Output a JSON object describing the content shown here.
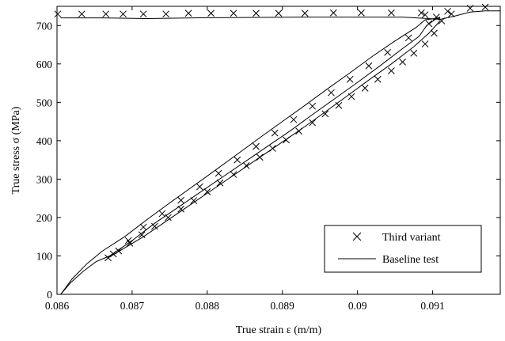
{
  "chart_data": {
    "type": "line",
    "title": "",
    "xlabel": "True strain ε (m/m)",
    "ylabel": "True stress σ (MPa)",
    "xlim": [
      0.086,
      0.0919
    ],
    "ylim": [
      0,
      750
    ],
    "grid": false,
    "legend": {
      "placement": "bottom-right",
      "entries": [
        "Third variant",
        "Baseline test"
      ]
    },
    "xticks": [
      {
        "value": 0.086,
        "label": "0.086"
      },
      {
        "value": 0.087,
        "label": "0.087"
      },
      {
        "value": 0.088,
        "label": "0.088"
      },
      {
        "value": 0.089,
        "label": "0.089"
      },
      {
        "value": 0.09,
        "label": "0.09"
      },
      {
        "value": 0.091,
        "label": "0.091"
      }
    ],
    "yticks": [
      {
        "value": 0,
        "label": "0"
      },
      {
        "value": 100,
        "label": "100"
      },
      {
        "value": 200,
        "label": "200"
      },
      {
        "value": 300,
        "label": "300"
      },
      {
        "value": 400,
        "label": "400"
      },
      {
        "value": 500,
        "label": "500"
      },
      {
        "value": 600,
        "label": "600"
      },
      {
        "value": 700,
        "label": "700"
      }
    ],
    "series": [
      {
        "name": "Third variant",
        "style": "cross-markers",
        "color": "#000000",
        "points": [
          [
            0.08601,
            730
          ],
          [
            0.08633,
            730
          ],
          [
            0.08665,
            730
          ],
          [
            0.08688,
            730
          ],
          [
            0.08715,
            730
          ],
          [
            0.08745,
            730
          ],
          [
            0.08775,
            732
          ],
          [
            0.08805,
            732
          ],
          [
            0.08835,
            732
          ],
          [
            0.08865,
            732
          ],
          [
            0.08895,
            732
          ],
          [
            0.0893,
            732
          ],
          [
            0.08968,
            733
          ],
          [
            0.09005,
            733
          ],
          [
            0.09045,
            733
          ],
          [
            0.09085,
            733
          ],
          [
            0.0912,
            737
          ],
          [
            0.0915,
            745
          ],
          [
            0.0917,
            748
          ],
          [
            0.08668,
            95
          ],
          [
            0.08682,
            113
          ],
          [
            0.08697,
            133
          ],
          [
            0.08713,
            155
          ],
          [
            0.0873,
            177
          ],
          [
            0.08748,
            200
          ],
          [
            0.08765,
            222
          ],
          [
            0.08782,
            244
          ],
          [
            0.088,
            267
          ],
          [
            0.08817,
            290
          ],
          [
            0.08835,
            312
          ],
          [
            0.08852,
            335
          ],
          [
            0.0887,
            357
          ],
          [
            0.08887,
            380
          ],
          [
            0.08905,
            402
          ],
          [
            0.08922,
            425
          ],
          [
            0.0894,
            447
          ],
          [
            0.08957,
            470
          ],
          [
            0.08975,
            492
          ],
          [
            0.08992,
            515
          ],
          [
            0.0901,
            537
          ],
          [
            0.09027,
            560
          ],
          [
            0.09045,
            582
          ],
          [
            0.0906,
            605
          ],
          [
            0.09075,
            628
          ],
          [
            0.0909,
            652
          ],
          [
            0.09102,
            680
          ],
          [
            0.09112,
            712
          ],
          [
            0.08675,
            105
          ],
          [
            0.08695,
            140
          ],
          [
            0.08715,
            175
          ],
          [
            0.0874,
            210
          ],
          [
            0.08765,
            245
          ],
          [
            0.0879,
            280
          ],
          [
            0.08815,
            315
          ],
          [
            0.0884,
            350
          ],
          [
            0.08865,
            385
          ],
          [
            0.0889,
            420
          ],
          [
            0.08915,
            455
          ],
          [
            0.0894,
            490
          ],
          [
            0.08965,
            525
          ],
          [
            0.0899,
            560
          ],
          [
            0.09015,
            595
          ],
          [
            0.0904,
            630
          ],
          [
            0.09068,
            668
          ],
          [
            0.09095,
            705
          ],
          [
            0.0909,
            728
          ],
          [
            0.09105,
            722
          ],
          [
            0.09125,
            730
          ]
        ]
      },
      {
        "name": "Baseline test",
        "style": "solid-line",
        "color": "#000000",
        "lines": [
          [
            [
              0.08605,
              0
            ],
            [
              0.08618,
              30
            ],
            [
              0.08635,
              60
            ],
            [
              0.08652,
              85
            ],
            [
              0.0867,
              100
            ],
            [
              0.087,
              140
            ],
            [
              0.0873,
              185
            ],
            [
              0.0876,
              225
            ],
            [
              0.0879,
              265
            ],
            [
              0.0882,
              305
            ],
            [
              0.0885,
              345
            ],
            [
              0.0888,
              385
            ],
            [
              0.0891,
              425
            ],
            [
              0.0894,
              468
            ],
            [
              0.0897,
              510
            ],
            [
              0.09,
              552
            ],
            [
              0.0903,
              595
            ],
            [
              0.0906,
              640
            ],
            [
              0.09082,
              672
            ],
            [
              0.09092,
              700
            ],
            [
              0.09105,
              718
            ],
            [
              0.0911,
              722
            ]
          ],
          [
            [
              0.08605,
              0
            ],
            [
              0.0862,
              40
            ],
            [
              0.0864,
              80
            ],
            [
              0.0866,
              112
            ],
            [
              0.0869,
              150
            ],
            [
              0.0872,
              195
            ],
            [
              0.0875,
              238
            ],
            [
              0.0878,
              280
            ],
            [
              0.0881,
              322
            ],
            [
              0.0884,
              365
            ],
            [
              0.0887,
              408
            ],
            [
              0.089,
              450
            ],
            [
              0.0893,
              492
            ],
            [
              0.0896,
              535
            ],
            [
              0.0899,
              577
            ],
            [
              0.0902,
              620
            ],
            [
              0.0905,
              660
            ],
            [
              0.09078,
              695
            ],
            [
              0.0909,
              715
            ],
            [
              0.0911,
              720
            ]
          ],
          [
            [
              0.08668,
              95
            ],
            [
              0.08685,
              115
            ],
            [
              0.08715,
              150
            ],
            [
              0.08745,
              190
            ],
            [
              0.08775,
              230
            ],
            [
              0.08805,
              270
            ],
            [
              0.08835,
              310
            ],
            [
              0.08865,
              350
            ],
            [
              0.08895,
              390
            ],
            [
              0.08925,
              430
            ],
            [
              0.08955,
              472
            ],
            [
              0.08985,
              515
            ],
            [
              0.09015,
              558
            ],
            [
              0.09045,
              600
            ],
            [
              0.09075,
              645
            ],
            [
              0.09095,
              680
            ],
            [
              0.0911,
              712
            ]
          ],
          [
            [
              0.08605,
              720
            ],
            [
              0.0866,
              720
            ],
            [
              0.0872,
              718
            ],
            [
              0.0878,
              720
            ],
            [
              0.0885,
              721
            ],
            [
              0.0893,
              722
            ],
            [
              0.09,
              722
            ],
            [
              0.0906,
              722
            ],
            [
              0.09095,
              718
            ],
            [
              0.0911,
              716
            ],
            [
              0.0913,
              725
            ],
            [
              0.0915,
              735
            ],
            [
              0.0917,
              738
            ],
            [
              0.0919,
              738
            ]
          ]
        ]
      }
    ]
  }
}
